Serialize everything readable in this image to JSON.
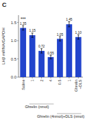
{
  "chart_data": {
    "type": "bar",
    "title": "C",
    "categories": [
      "Saline",
      "1",
      "2",
      "4",
      "0.5",
      "1",
      "Ghrelin\n+DLS"
    ],
    "values": [
      1.35,
      1.15,
      0.72,
      0.55,
      1.05,
      1.45,
      1.1
    ],
    "errors": [
      0.06,
      0.06,
      0.06,
      0.05,
      0.06,
      0.07,
      0.06
    ],
    "color": "#2244cc",
    "ylabel": "LHβ mRNA/GAPDH",
    "ylim": [
      0,
      1.7
    ],
    "yticks": [
      {
        "value": 0,
        "label": "0.0"
      },
      0.5,
      {
        "value": 1,
        "label": "1.0"
      },
      1.5
    ],
    "data_labels": true,
    "value_labels": [
      "1.35",
      "1.15",
      "0.72",
      "0.55",
      "1.05",
      "1.45",
      "1.10"
    ],
    "annotations": [
      "Ghrelin (nmol)",
      "Ghrelin (4nmol)+DLS (nmol)",
      "***"
    ]
  }
}
